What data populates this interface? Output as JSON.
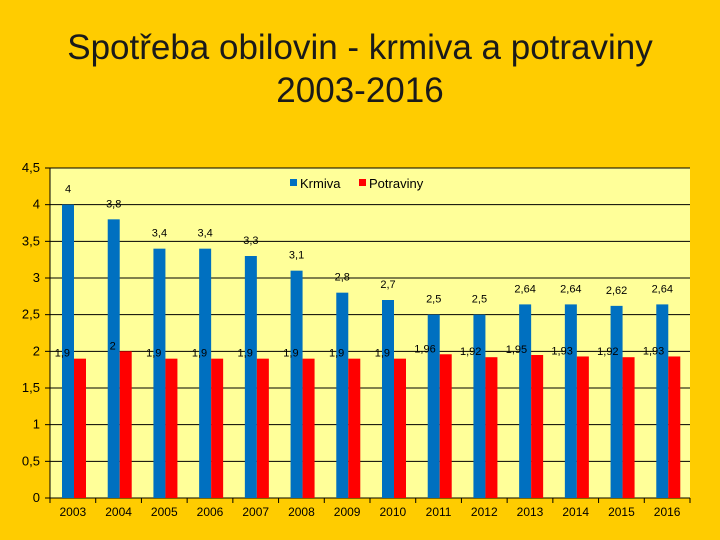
{
  "title_line1": "Spotřeba obilovin - krmiva a potraviny",
  "title_line2": "2003-2016",
  "chart_data": {
    "type": "bar",
    "title": "Spotřeba obilovin - krmiva a potraviny 2003-2016",
    "categories": [
      "2003",
      "2004",
      "2005",
      "2006",
      "2007",
      "2008",
      "2009",
      "2010",
      "2011",
      "2012",
      "2013",
      "2014",
      "2015",
      "2016"
    ],
    "series": [
      {
        "name": "Krmiva",
        "color": "#0070C0",
        "values": [
          4,
          3.8,
          3.4,
          3.4,
          3.3,
          3.1,
          2.8,
          2.7,
          2.5,
          2.5,
          2.64,
          2.64,
          2.62,
          2.64
        ],
        "labels": [
          "4",
          "3,8",
          "3,4",
          "3,4",
          "3,3",
          "3,1",
          "2,8",
          "2,7",
          "2,5",
          "2,5",
          "2,64",
          "2,64",
          "2,62",
          "2,64"
        ]
      },
      {
        "name": "Potraviny",
        "color": "#FF0000",
        "values": [
          1.9,
          2,
          1.9,
          1.9,
          1.9,
          1.9,
          1.9,
          1.9,
          1.96,
          1.92,
          1.95,
          1.93,
          1.92,
          1.93
        ],
        "labels": [
          "1,9",
          "2",
          "1,9",
          "1,9",
          "1,9",
          "1,9",
          "1,9",
          "1,9",
          "1,96",
          "1,92",
          "1,95",
          "1,93",
          "1,92",
          "1,93"
        ]
      }
    ],
    "yticks": [
      "0",
      "0,5",
      "1",
      "1,5",
      "2",
      "2,5",
      "3",
      "3,5",
      "4",
      "4,5"
    ],
    "ylim": [
      0,
      4.5
    ],
    "grid": true,
    "legend": "top-right"
  }
}
